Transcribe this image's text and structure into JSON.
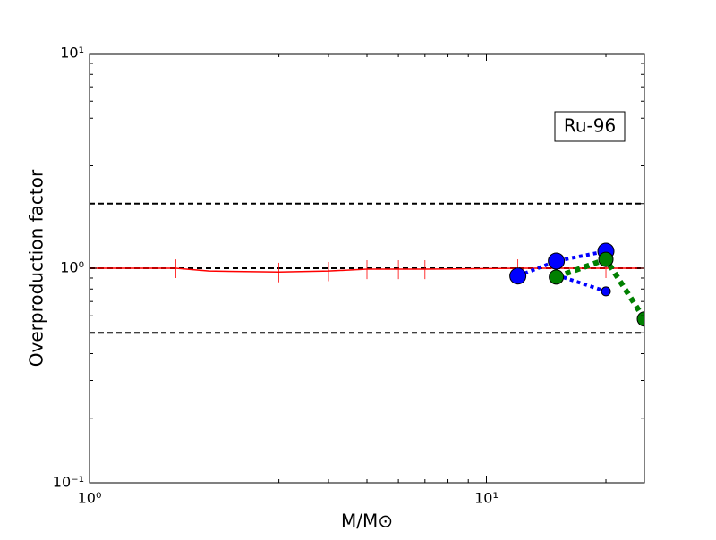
{
  "chart_data": {
    "type": "line",
    "xlabel": "M/M⊙",
    "ylabel": "Overproduction factor",
    "annotation": "Ru-96",
    "xscale": "log",
    "yscale": "log",
    "xlim": [
      1,
      25
    ],
    "ylim": [
      0.1,
      10
    ],
    "xticks": [
      {
        "value": 1,
        "label": "10⁰"
      },
      {
        "value": 10,
        "label": "10¹"
      }
    ],
    "yticks": [
      {
        "value": 0.1,
        "label": "10⁻¹"
      },
      {
        "value": 1,
        "label": "10⁰"
      },
      {
        "value": 10,
        "label": "10¹"
      }
    ],
    "xminorticks": [
      2,
      3,
      4,
      5,
      6,
      7,
      8,
      9,
      20
    ],
    "yminorticks": [
      0.2,
      0.3,
      0.4,
      0.5,
      0.6,
      0.7,
      0.8,
      0.9,
      2,
      3,
      4,
      5,
      6,
      7,
      8,
      9
    ],
    "hlines": [
      0.5,
      1,
      2
    ],
    "series": [
      {
        "color": "#ff0000",
        "style": "solid",
        "x": [
          1,
          1.65,
          2,
          3,
          4,
          5,
          6,
          7,
          12,
          15,
          20,
          25
        ],
        "values": [
          1,
          1,
          0.97,
          0.96,
          0.97,
          0.99,
          0.99,
          0.99,
          1,
          1,
          1,
          1
        ],
        "errors": [
          null,
          0.1,
          0.1,
          0.1,
          0.1,
          0.1,
          0.1,
          0.1,
          0.1,
          0.1,
          0.1,
          null
        ]
      },
      {
        "color": "#0000ff",
        "style": "dotted",
        "marker": 9,
        "x": [
          12,
          15,
          20
        ],
        "values": [
          0.92,
          1.08,
          1.2
        ]
      },
      {
        "color": "#0000ff",
        "style": "dotted",
        "marker": 5,
        "x": [
          15,
          20
        ],
        "values": [
          0.93,
          0.78
        ]
      },
      {
        "color": "#008000",
        "style": "dashed",
        "marker": 8,
        "x": [
          15,
          20,
          25
        ],
        "values": [
          0.91,
          1.1,
          0.58
        ]
      }
    ]
  }
}
